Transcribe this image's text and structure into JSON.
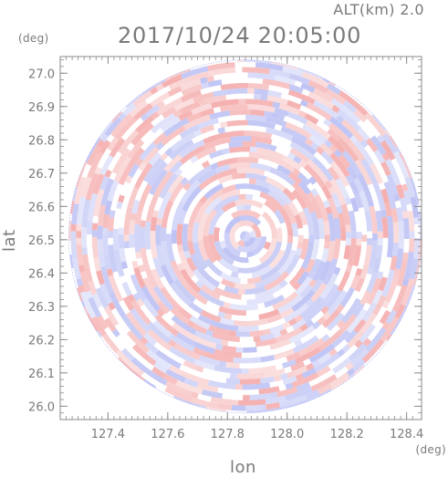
{
  "header": {
    "altitude_label": "ALT(km) 2.0",
    "datetime": "2017/10/24 20:05:00"
  },
  "axes": {
    "y_unit": "(deg)",
    "x_unit": "(deg)",
    "xlabel": "lon",
    "ylabel": "lat"
  },
  "chart_data": {
    "type": "heatmap",
    "title": "2017/10/24 20:05:00",
    "subtitle": "ALT(km) 2.0",
    "xlabel": "lon",
    "ylabel": "lat",
    "x_unit": "(deg)",
    "y_unit": "(deg)",
    "xlim": [
      127.24,
      128.45
    ],
    "ylim": [
      25.96,
      27.05
    ],
    "x_ticks": [
      127.4,
      127.6,
      127.8,
      128.0,
      128.2,
      128.4
    ],
    "y_ticks": [
      26.0,
      26.1,
      26.2,
      26.3,
      26.4,
      26.5,
      26.6,
      26.7,
      26.8,
      26.9,
      27.0
    ],
    "x_tick_labels": [
      "127.4",
      "127.6",
      "127.8",
      "128.0",
      "128.2",
      "128.4"
    ],
    "y_tick_labels": [
      "26.0",
      "26.1",
      "26.2",
      "26.3",
      "26.4",
      "26.5",
      "26.6",
      "26.7",
      "26.8",
      "26.9",
      "27.0"
    ],
    "center": {
      "lon": 127.86,
      "lat": 26.51
    },
    "radius_deg_lat": 0.53,
    "grid": false,
    "colors": {
      "positive": "#f4a6a6",
      "negative": "#b7bdf3",
      "neutral": "#ffffff",
      "frame": "#8a8a8a",
      "text": "#7a7a7a"
    }
  }
}
